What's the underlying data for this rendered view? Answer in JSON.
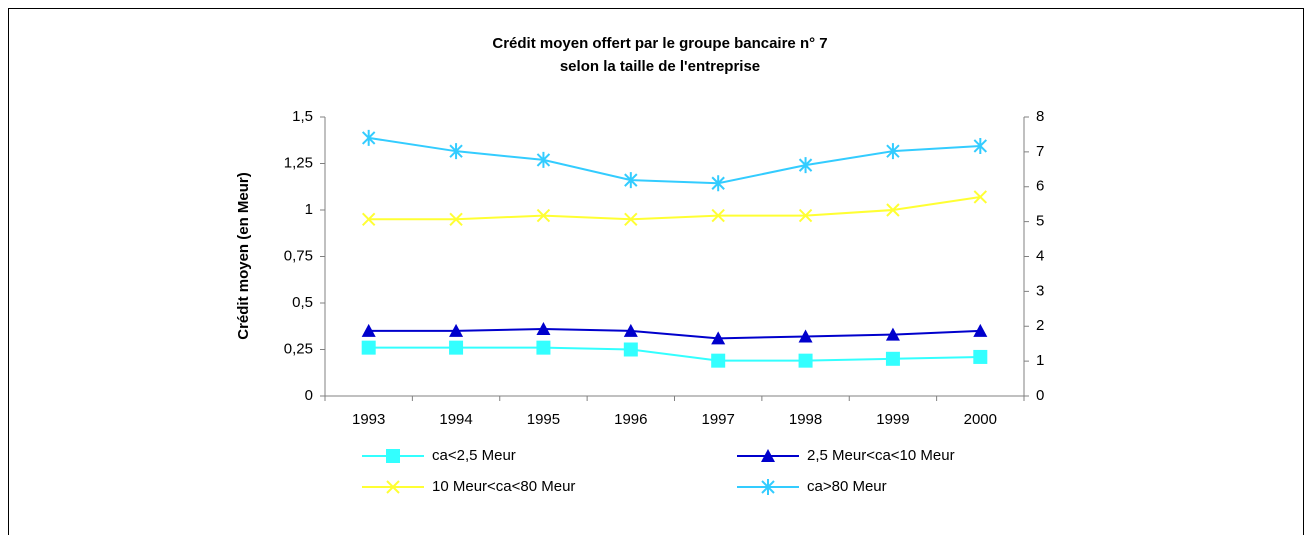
{
  "chart_data": {
    "type": "line",
    "title": [
      "Crédit moyen offert par le groupe bancaire n° 7",
      "selon la taille de l'entreprise"
    ],
    "ylabel": "Crédit moyen (en Meur)",
    "categories": [
      "1993",
      "1994",
      "1995",
      "1996",
      "1997",
      "1998",
      "1999",
      "2000"
    ],
    "ylim": [
      0,
      1.5
    ],
    "yticks": [
      0,
      {
        "value": 0.25,
        "label": "0,25"
      },
      {
        "value": 0.5,
        "label": "0,5"
      },
      {
        "value": 0.75,
        "label": "0,75"
      },
      1,
      {
        "value": 1.25,
        "label": "1,25"
      },
      {
        "value": 1.5,
        "label": "1,5"
      }
    ],
    "y2lim": [
      0,
      8
    ],
    "y2ticks": [
      0,
      1,
      2,
      3,
      4,
      5,
      6,
      7,
      8
    ],
    "grid": false,
    "series": [
      {
        "name": "ca<2,5 Meur",
        "color": "#33ffff",
        "marker": "square",
        "values": [
          0.26,
          0.26,
          0.26,
          0.25,
          0.19,
          0.19,
          0.2,
          0.21
        ]
      },
      {
        "name": "2,5 Meur<ca<10 Meur",
        "color": "#0000cc",
        "marker": "triangle",
        "values": [
          0.35,
          0.35,
          0.36,
          0.35,
          0.31,
          0.32,
          0.33,
          0.35
        ]
      },
      {
        "name": "10 Meur<ca<80 Meur",
        "color": "#ffff33",
        "marker": "x",
        "values": [
          0.95,
          0.95,
          0.97,
          0.95,
          0.97,
          0.97,
          1.0,
          1.07
        ]
      },
      {
        "name": "ca>80 Meur",
        "color": "#33ccff",
        "marker": "star",
        "axis": "y2",
        "values": [
          7.4,
          7.02,
          6.77,
          6.19,
          6.1,
          6.62,
          7.02,
          7.17
        ]
      }
    ]
  }
}
